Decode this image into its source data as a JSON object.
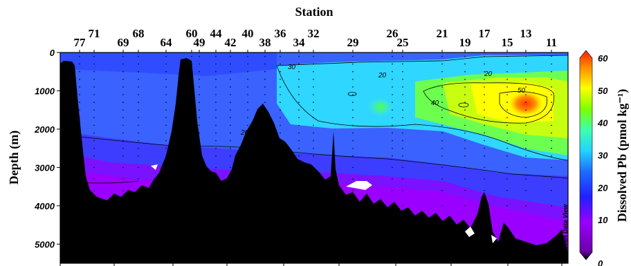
{
  "chart_data": {
    "type": "heatmap",
    "title": "Station",
    "ylabel": "Depth (m)",
    "colorbar_label": "Dissolved Pb (pmol kg⁻¹)",
    "yticks": [
      0,
      1000,
      2000,
      3000,
      4000,
      5000
    ],
    "ylim": [
      0,
      5500
    ],
    "stations": [
      "77",
      "71",
      "69",
      "68",
      "64",
      "60",
      "49",
      "44",
      "42",
      "40",
      "38",
      "36",
      "34",
      "32",
      "29",
      "26",
      "25",
      "21",
      "19",
      "17",
      "15",
      "13",
      "11"
    ],
    "colorbar_ticks": [
      0,
      10,
      20,
      30,
      40,
      50,
      60
    ],
    "colorbar_range": [
      0,
      60
    ],
    "contour_labels": [
      {
        "value": "30",
        "depth": 550
      },
      {
        "value": "20",
        "depth": 2150
      },
      {
        "value": "20",
        "depth": 400
      },
      {
        "value": "20",
        "depth": 350
      },
      {
        "value": "40",
        "depth": 1400
      },
      {
        "value": "50",
        "depth": 1050
      }
    ],
    "watermark": "Ocean Data View"
  }
}
